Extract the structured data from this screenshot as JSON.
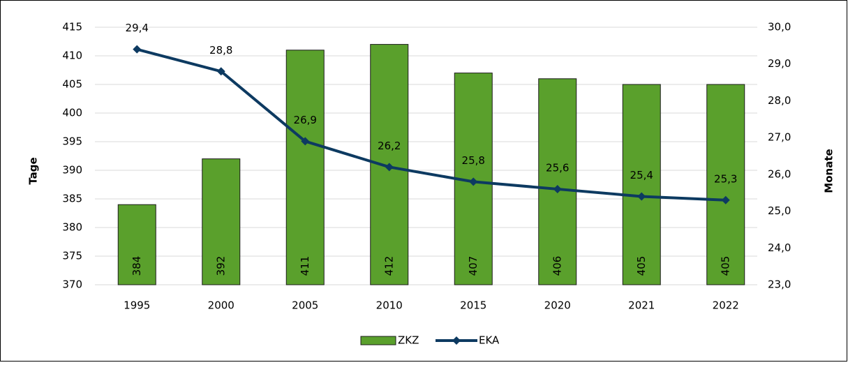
{
  "chart_data": {
    "type": "combo",
    "categories": [
      "1995",
      "2000",
      "2005",
      "2010",
      "2015",
      "2020",
      "2021",
      "2022"
    ],
    "series": [
      {
        "name": "ZKZ",
        "type": "bar",
        "color": "#5aa02c",
        "values": [
          384,
          392,
          411,
          412,
          407,
          406,
          405,
          405
        ]
      },
      {
        "name": "EKA",
        "type": "line",
        "axis": "y2",
        "color": "#0d3a61",
        "values": [
          29.4,
          28.8,
          26.9,
          26.2,
          25.8,
          25.6,
          25.4,
          25.3
        ],
        "value_labels": [
          "29,4",
          "28,8",
          "26,9",
          "26,2",
          "25,8",
          "25,6",
          "25,4",
          "25,3"
        ]
      }
    ],
    "ylabel": "Tage",
    "y2label": "Monate",
    "ylim": [
      370,
      415
    ],
    "yticks": [
      370,
      375,
      380,
      385,
      390,
      395,
      400,
      405,
      410,
      415
    ],
    "y2lim": [
      23,
      30
    ],
    "y2ticks": [
      {
        "value": 23,
        "label": "23,0"
      },
      {
        "value": 24,
        "label": "24,0"
      },
      {
        "value": 25,
        "label": "25,0"
      },
      {
        "value": 26,
        "label": "26,0"
      },
      {
        "value": 27,
        "label": "27,0"
      },
      {
        "value": 28,
        "label": "28,0"
      },
      {
        "value": 29,
        "label": "29,0"
      },
      {
        "value": 30,
        "label": "30,0"
      }
    ],
    "grid": true,
    "legend": "bottom"
  }
}
